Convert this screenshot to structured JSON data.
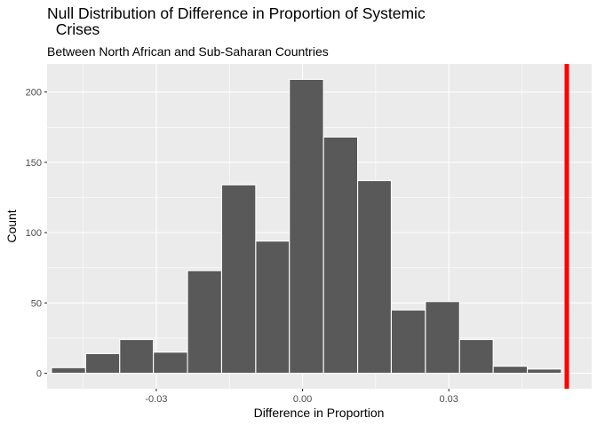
{
  "chart_data": {
    "type": "bar",
    "title_lines": [
      "Null Distribution of Difference in Proportion of Systemic",
      "  Crises"
    ],
    "subtitle": "Between North African and Sub-Saharan Countries",
    "xlabel": "Difference in Proportion",
    "ylabel": "Count",
    "x_ticks": [
      -0.03,
      0.0,
      0.03
    ],
    "x_tick_labels": [
      "-0.03",
      "0.00",
      "0.03"
    ],
    "y_ticks": [
      0,
      50,
      100,
      150,
      200
    ],
    "y_tick_labels": [
      "0",
      "50",
      "100",
      "150",
      "200"
    ],
    "xlim": [
      -0.0524,
      0.0593
    ],
    "ylim": [
      -11,
      220
    ],
    "grid": true,
    "bin_width": 0.00697,
    "bins": [
      {
        "x0": -0.0515,
        "x1": -0.0445,
        "count": 4
      },
      {
        "x0": -0.0445,
        "x1": -0.0375,
        "count": 14
      },
      {
        "x0": -0.0375,
        "x1": -0.0306,
        "count": 24
      },
      {
        "x0": -0.0306,
        "x1": -0.0236,
        "count": 15
      },
      {
        "x0": -0.0236,
        "x1": -0.0166,
        "count": 73
      },
      {
        "x0": -0.0166,
        "x1": -0.0096,
        "count": 134
      },
      {
        "x0": -0.0096,
        "x1": -0.0027,
        "count": 94
      },
      {
        "x0": -0.0027,
        "x1": 0.0043,
        "count": 209
      },
      {
        "x0": 0.0043,
        "x1": 0.0113,
        "count": 168
      },
      {
        "x0": 0.0113,
        "x1": 0.0182,
        "count": 137
      },
      {
        "x0": 0.0182,
        "x1": 0.0252,
        "count": 45
      },
      {
        "x0": 0.0252,
        "x1": 0.0322,
        "count": 51
      },
      {
        "x0": 0.0322,
        "x1": 0.0391,
        "count": 24
      },
      {
        "x0": 0.0391,
        "x1": 0.0461,
        "count": 5
      },
      {
        "x0": 0.0461,
        "x1": 0.0531,
        "count": 3
      }
    ],
    "observed_line": {
      "x": 0.0542,
      "color": "#ff0000"
    },
    "colors": {
      "panel": "#ebebeb",
      "grid_major": "#ffffff",
      "bar_fill": "#595959",
      "bar_stroke": "#ffffff"
    }
  }
}
